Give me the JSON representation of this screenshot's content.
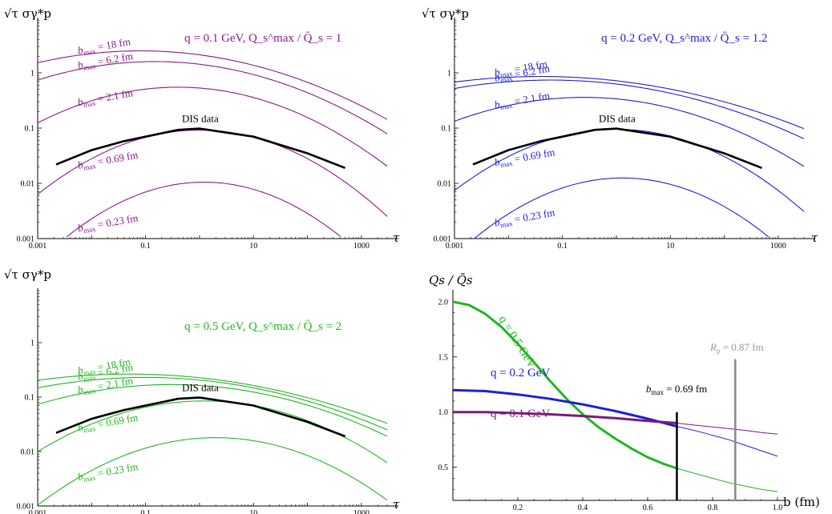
{
  "chart_data": [
    {
      "type": "line",
      "panel": "tau-q0.1",
      "color": "#8b1a8b",
      "ylabel": "√τ σγ*p",
      "xlabel": "τ",
      "xscale": "log",
      "yscale": "log",
      "xlim": [
        0.001,
        3000
      ],
      "ylim": [
        0.001,
        10
      ],
      "xticks": [
        "0.001",
        "0.1",
        "10",
        "1000"
      ],
      "yticks": [
        "0.001",
        "0.01",
        "0.1",
        "1"
      ],
      "title_q": "q = 0.1 GeV,",
      "title_ratio": "Q_s^max / Q̄_s = 1",
      "series": [
        {
          "name": "b_max = 18 fm",
          "label_bmax": "18 fm",
          "peak_tau": 0.08,
          "peak_val": 2.5,
          "width": 1.8
        },
        {
          "name": "b_max = 6.2 fm",
          "label_bmax": "6.2 fm",
          "peak_tau": 0.15,
          "peak_val": 1.6,
          "width": 1.65
        },
        {
          "name": "b_max = 2.1 fm",
          "label_bmax": "2.1 fm",
          "peak_tau": 0.4,
          "peak_val": 0.55,
          "width": 1.42
        },
        {
          "name": "b_max = 0.69 fm",
          "label_bmax": "0.69 fm",
          "peak_tau": 1.0,
          "peak_val": 0.092,
          "width": 1.22
        },
        {
          "name": "b_max = 0.23 fm",
          "label_bmax": "0.23 fm",
          "peak_tau": 1.2,
          "peak_val": 0.0105,
          "width": 1.12
        }
      ],
      "dis_data": {
        "label": "DIS data",
        "tau": [
          0.0022,
          0.01,
          0.04,
          0.4,
          1.0,
          10,
          100,
          500
        ],
        "value": [
          0.022,
          0.04,
          0.058,
          0.093,
          0.098,
          0.07,
          0.035,
          0.019
        ]
      }
    },
    {
      "type": "line",
      "panel": "tau-q0.2",
      "color": "#1f1fd6",
      "ylabel": "√τ σγ*p",
      "xlabel": "τ",
      "xscale": "log",
      "yscale": "log",
      "xlim": [
        0.001,
        3000
      ],
      "ylim": [
        0.001,
        10
      ],
      "xticks": [
        "0.001",
        "0.1",
        "10",
        "1000"
      ],
      "yticks": [
        "0.001",
        "0.01",
        "0.1",
        "1"
      ],
      "title_q": "q = 0.2 GeV,",
      "title_ratio": "Q_s^max / Q̄_s = 1.2",
      "series": [
        {
          "name": "b_max = 18 fm",
          "label_bmax": "18 fm",
          "peak_tau": 0.04,
          "peak_val": 0.86,
          "width": 2.2
        },
        {
          "name": "b_max = 6.2 fm",
          "label_bmax": "6.2 fm",
          "peak_tau": 0.06,
          "peak_val": 0.74,
          "width": 2.0
        },
        {
          "name": "b_max = 2.1 fm",
          "label_bmax": "2.1 fm",
          "peak_tau": 0.25,
          "peak_val": 0.36,
          "width": 1.6
        },
        {
          "name": "b_max = 0.69 fm",
          "label_bmax": "0.69 fm",
          "peak_tau": 1.0,
          "peak_val": 0.095,
          "width": 1.25
        },
        {
          "name": "b_max = 0.23 fm",
          "label_bmax": "0.23 fm",
          "peak_tau": 1.3,
          "peak_val": 0.0125,
          "width": 1.15
        }
      ],
      "dis_data": {
        "label": "DIS data",
        "tau": [
          0.0022,
          0.01,
          0.04,
          0.4,
          1.0,
          10,
          100,
          500
        ],
        "value": [
          0.022,
          0.04,
          0.058,
          0.093,
          0.098,
          0.07,
          0.035,
          0.019
        ]
      }
    },
    {
      "type": "line",
      "panel": "tau-q0.5",
      "color": "#22b522",
      "ylabel": "√τ σγ*p",
      "xlabel": "τ",
      "xscale": "log",
      "yscale": "log",
      "xlim": [
        0.001,
        3000
      ],
      "ylim": [
        0.001,
        10
      ],
      "xticks": [
        "0.001",
        "0.1",
        "10",
        "1000"
      ],
      "yticks": [
        "0.001",
        "0.01",
        "0.1",
        "1"
      ],
      "title_q": "q = 0.5 GeV,",
      "title_ratio": "Q_s^max / Q̄_s = 2",
      "series": [
        {
          "name": "b_max = 18 fm",
          "label_bmax": "18 fm",
          "peak_tau": 0.05,
          "peak_val": 0.265,
          "width": 2.2
        },
        {
          "name": "b_max = 6.2 fm",
          "label_bmax": "6.2 fm",
          "peak_tau": 0.1,
          "peak_val": 0.23,
          "width": 2.0
        },
        {
          "name": "b_max = 2.1 fm",
          "label_bmax": "2.1 fm",
          "peak_tau": 0.3,
          "peak_val": 0.17,
          "width": 1.8
        },
        {
          "name": "b_max = 0.69 fm",
          "label_bmax": "0.69 fm",
          "peak_tau": 1.2,
          "peak_val": 0.085,
          "width": 1.4
        },
        {
          "name": "b_max = 0.23 fm",
          "label_bmax": "0.23 fm",
          "peak_tau": 2.0,
          "peak_val": 0.018,
          "width": 1.3
        }
      ],
      "dis_data": {
        "label": "DIS data",
        "tau": [
          0.0022,
          0.01,
          0.04,
          0.4,
          1.0,
          10,
          100,
          500
        ],
        "value": [
          0.022,
          0.04,
          0.058,
          0.093,
          0.098,
          0.07,
          0.035,
          0.019
        ]
      }
    },
    {
      "type": "line",
      "panel": "qs-profile",
      "ylabel": "Qs / Q̄s",
      "xlabel": "b (fm)",
      "xlim": [
        0,
        1.0
      ],
      "ylim": [
        0.2,
        2.05
      ],
      "xticks": [
        "0.2",
        "0.4",
        "0.6",
        "0.8",
        "1.0"
      ],
      "yticks": [
        "0.5",
        "1.0",
        "1.5",
        "2.0"
      ],
      "series": [
        {
          "name": "q = 0.5 GeV",
          "color": "#22b522",
          "x": [
            0,
            0.05,
            0.1,
            0.15,
            0.2,
            0.25,
            0.3,
            0.35,
            0.4,
            0.45,
            0.5,
            0.55,
            0.6,
            0.65,
            0.69,
            0.75,
            0.8,
            0.85,
            0.9,
            0.95,
            1.0
          ],
          "values": [
            2.0,
            1.97,
            1.89,
            1.77,
            1.62,
            1.45,
            1.28,
            1.12,
            0.98,
            0.86,
            0.76,
            0.67,
            0.59,
            0.53,
            0.49,
            0.44,
            0.4,
            0.36,
            0.33,
            0.3,
            0.28
          ]
        },
        {
          "name": "q = 0.2 GeV",
          "color": "#1f1fd6",
          "x": [
            0,
            0.1,
            0.2,
            0.3,
            0.4,
            0.5,
            0.6,
            0.69,
            0.75,
            0.8,
            0.85,
            0.9,
            0.95,
            1.0
          ],
          "values": [
            1.2,
            1.19,
            1.16,
            1.12,
            1.07,
            1.01,
            0.94,
            0.87,
            0.83,
            0.79,
            0.75,
            0.7,
            0.65,
            0.6
          ]
        },
        {
          "name": "q = 0.1 GeV",
          "color": "#7a1a7a",
          "x": [
            0,
            0.1,
            0.2,
            0.3,
            0.4,
            0.5,
            0.6,
            0.69,
            0.75,
            0.8,
            0.85,
            0.9,
            0.95,
            1.0
          ],
          "values": [
            1.0,
            1.0,
            0.99,
            0.98,
            0.965,
            0.945,
            0.92,
            0.9,
            0.88,
            0.865,
            0.85,
            0.835,
            0.815,
            0.8
          ]
        }
      ],
      "bmax_line": {
        "label_prefix": "b",
        "label_sub": "max",
        "label_value": "= 0.69 fm",
        "x": 0.69
      },
      "rp_line": {
        "label_prefix": "R",
        "label_sub": "p",
        "label_value": "= 0.87 fm",
        "x": 0.87
      },
      "curve_labels": [
        "q = 0.5 GeV",
        "q = 0.2 GeV",
        "q = 0.1 GeV"
      ]
    }
  ]
}
